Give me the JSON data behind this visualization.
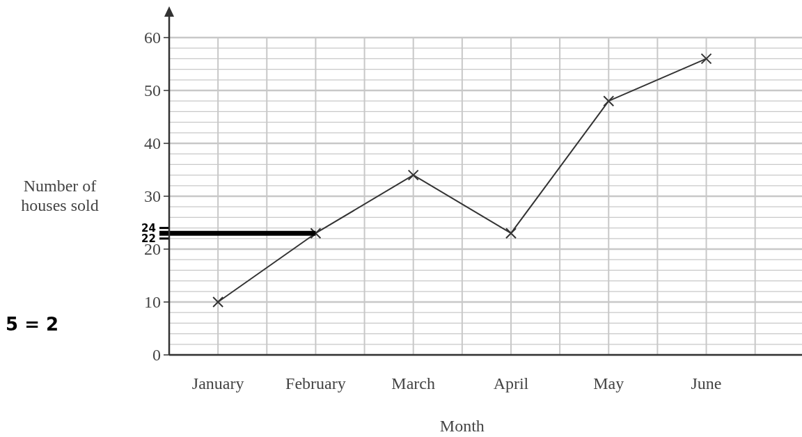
{
  "chart_data": {
    "type": "line",
    "xlabel": "Month",
    "ylabel": "Number of houses sold",
    "categories": [
      "January",
      "February",
      "March",
      "April",
      "May",
      "June"
    ],
    "series": [
      {
        "color": "#333333",
        "values": [
          10,
          23,
          34,
          23,
          48,
          56
        ]
      }
    ],
    "marker": "cross",
    "line_style": "solid",
    "grid": true,
    "ylim": [
      0,
      60
    ],
    "yticks": [
      0,
      {
        "value": 2,
        "label": null
      },
      {
        "value": 4,
        "label": null
      },
      {
        "value": 6,
        "label": null
      },
      {
        "value": 8,
        "label": null
      },
      10,
      {
        "value": 12,
        "label": null
      },
      {
        "value": 14,
        "label": null
      },
      {
        "value": 16,
        "label": null
      },
      {
        "value": 18,
        "label": null
      },
      20,
      {
        "value": 22,
        "label": null
      },
      {
        "value": 24,
        "label": null
      },
      {
        "value": 26,
        "label": null
      },
      {
        "value": 28,
        "label": null
      },
      30,
      {
        "value": 32,
        "label": null
      },
      {
        "value": 34,
        "label": null
      },
      {
        "value": 36,
        "label": null
      },
      {
        "value": 38,
        "label": null
      },
      40,
      {
        "value": 42,
        "label": null
      },
      {
        "value": 44,
        "label": null
      },
      {
        "value": 46,
        "label": null
      },
      {
        "value": 48,
        "label": null
      },
      50,
      {
        "value": 52,
        "label": null
      },
      {
        "value": 54,
        "label": null
      },
      {
        "value": 56,
        "label": null
      },
      {
        "value": 58,
        "label": null
      },
      60
    ],
    "ref_lines": [
      {
        "axis": "y",
        "value": 23,
        "color": "#000000"
      }
    ],
    "annotations": [
      "24",
      "22",
      "5 = 2"
    ]
  }
}
